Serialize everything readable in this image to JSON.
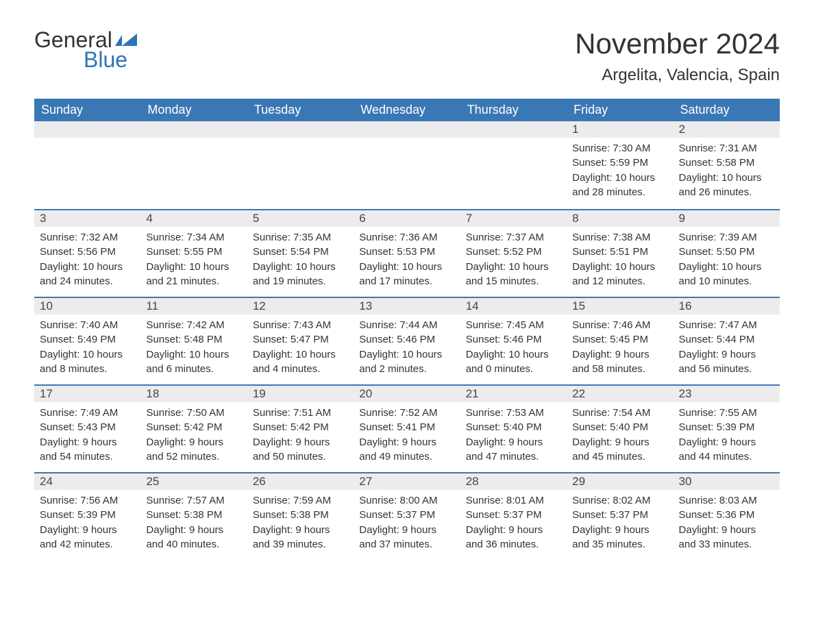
{
  "brand": {
    "text_general": "General",
    "text_blue": "Blue",
    "flag_color": "#2d74b8",
    "general_color": "#333333",
    "blue_color": "#2d74b8"
  },
  "header": {
    "month_title": "November 2024",
    "location": "Argelita, Valencia, Spain"
  },
  "colors": {
    "header_bg": "#3a78b5",
    "header_text": "#ffffff",
    "week_separator": "#3a78b5",
    "daynum_bg": "#ececec",
    "text": "#333333",
    "background": "#ffffff"
  },
  "typography": {
    "month_title_fontsize": 42,
    "location_fontsize": 24,
    "dayheader_fontsize": 18,
    "daynum_fontsize": 17,
    "body_fontsize": 15,
    "logo_fontsize": 32
  },
  "day_labels": [
    "Sunday",
    "Monday",
    "Tuesday",
    "Wednesday",
    "Thursday",
    "Friday",
    "Saturday"
  ],
  "weeks": [
    [
      {
        "n": "",
        "sunrise": "",
        "sunset": "",
        "day1": "",
        "day2": ""
      },
      {
        "n": "",
        "sunrise": "",
        "sunset": "",
        "day1": "",
        "day2": ""
      },
      {
        "n": "",
        "sunrise": "",
        "sunset": "",
        "day1": "",
        "day2": ""
      },
      {
        "n": "",
        "sunrise": "",
        "sunset": "",
        "day1": "",
        "day2": ""
      },
      {
        "n": "",
        "sunrise": "",
        "sunset": "",
        "day1": "",
        "day2": ""
      },
      {
        "n": "1",
        "sunrise": "Sunrise: 7:30 AM",
        "sunset": "Sunset: 5:59 PM",
        "day1": "Daylight: 10 hours",
        "day2": "and 28 minutes."
      },
      {
        "n": "2",
        "sunrise": "Sunrise: 7:31 AM",
        "sunset": "Sunset: 5:58 PM",
        "day1": "Daylight: 10 hours",
        "day2": "and 26 minutes."
      }
    ],
    [
      {
        "n": "3",
        "sunrise": "Sunrise: 7:32 AM",
        "sunset": "Sunset: 5:56 PM",
        "day1": "Daylight: 10 hours",
        "day2": "and 24 minutes."
      },
      {
        "n": "4",
        "sunrise": "Sunrise: 7:34 AM",
        "sunset": "Sunset: 5:55 PM",
        "day1": "Daylight: 10 hours",
        "day2": "and 21 minutes."
      },
      {
        "n": "5",
        "sunrise": "Sunrise: 7:35 AM",
        "sunset": "Sunset: 5:54 PM",
        "day1": "Daylight: 10 hours",
        "day2": "and 19 minutes."
      },
      {
        "n": "6",
        "sunrise": "Sunrise: 7:36 AM",
        "sunset": "Sunset: 5:53 PM",
        "day1": "Daylight: 10 hours",
        "day2": "and 17 minutes."
      },
      {
        "n": "7",
        "sunrise": "Sunrise: 7:37 AM",
        "sunset": "Sunset: 5:52 PM",
        "day1": "Daylight: 10 hours",
        "day2": "and 15 minutes."
      },
      {
        "n": "8",
        "sunrise": "Sunrise: 7:38 AM",
        "sunset": "Sunset: 5:51 PM",
        "day1": "Daylight: 10 hours",
        "day2": "and 12 minutes."
      },
      {
        "n": "9",
        "sunrise": "Sunrise: 7:39 AM",
        "sunset": "Sunset: 5:50 PM",
        "day1": "Daylight: 10 hours",
        "day2": "and 10 minutes."
      }
    ],
    [
      {
        "n": "10",
        "sunrise": "Sunrise: 7:40 AM",
        "sunset": "Sunset: 5:49 PM",
        "day1": "Daylight: 10 hours",
        "day2": "and 8 minutes."
      },
      {
        "n": "11",
        "sunrise": "Sunrise: 7:42 AM",
        "sunset": "Sunset: 5:48 PM",
        "day1": "Daylight: 10 hours",
        "day2": "and 6 minutes."
      },
      {
        "n": "12",
        "sunrise": "Sunrise: 7:43 AM",
        "sunset": "Sunset: 5:47 PM",
        "day1": "Daylight: 10 hours",
        "day2": "and 4 minutes."
      },
      {
        "n": "13",
        "sunrise": "Sunrise: 7:44 AM",
        "sunset": "Sunset: 5:46 PM",
        "day1": "Daylight: 10 hours",
        "day2": "and 2 minutes."
      },
      {
        "n": "14",
        "sunrise": "Sunrise: 7:45 AM",
        "sunset": "Sunset: 5:46 PM",
        "day1": "Daylight: 10 hours",
        "day2": "and 0 minutes."
      },
      {
        "n": "15",
        "sunrise": "Sunrise: 7:46 AM",
        "sunset": "Sunset: 5:45 PM",
        "day1": "Daylight: 9 hours",
        "day2": "and 58 minutes."
      },
      {
        "n": "16",
        "sunrise": "Sunrise: 7:47 AM",
        "sunset": "Sunset: 5:44 PM",
        "day1": "Daylight: 9 hours",
        "day2": "and 56 minutes."
      }
    ],
    [
      {
        "n": "17",
        "sunrise": "Sunrise: 7:49 AM",
        "sunset": "Sunset: 5:43 PM",
        "day1": "Daylight: 9 hours",
        "day2": "and 54 minutes."
      },
      {
        "n": "18",
        "sunrise": "Sunrise: 7:50 AM",
        "sunset": "Sunset: 5:42 PM",
        "day1": "Daylight: 9 hours",
        "day2": "and 52 minutes."
      },
      {
        "n": "19",
        "sunrise": "Sunrise: 7:51 AM",
        "sunset": "Sunset: 5:42 PM",
        "day1": "Daylight: 9 hours",
        "day2": "and 50 minutes."
      },
      {
        "n": "20",
        "sunrise": "Sunrise: 7:52 AM",
        "sunset": "Sunset: 5:41 PM",
        "day1": "Daylight: 9 hours",
        "day2": "and 49 minutes."
      },
      {
        "n": "21",
        "sunrise": "Sunrise: 7:53 AM",
        "sunset": "Sunset: 5:40 PM",
        "day1": "Daylight: 9 hours",
        "day2": "and 47 minutes."
      },
      {
        "n": "22",
        "sunrise": "Sunrise: 7:54 AM",
        "sunset": "Sunset: 5:40 PM",
        "day1": "Daylight: 9 hours",
        "day2": "and 45 minutes."
      },
      {
        "n": "23",
        "sunrise": "Sunrise: 7:55 AM",
        "sunset": "Sunset: 5:39 PM",
        "day1": "Daylight: 9 hours",
        "day2": "and 44 minutes."
      }
    ],
    [
      {
        "n": "24",
        "sunrise": "Sunrise: 7:56 AM",
        "sunset": "Sunset: 5:39 PM",
        "day1": "Daylight: 9 hours",
        "day2": "and 42 minutes."
      },
      {
        "n": "25",
        "sunrise": "Sunrise: 7:57 AM",
        "sunset": "Sunset: 5:38 PM",
        "day1": "Daylight: 9 hours",
        "day2": "and 40 minutes."
      },
      {
        "n": "26",
        "sunrise": "Sunrise: 7:59 AM",
        "sunset": "Sunset: 5:38 PM",
        "day1": "Daylight: 9 hours",
        "day2": "and 39 minutes."
      },
      {
        "n": "27",
        "sunrise": "Sunrise: 8:00 AM",
        "sunset": "Sunset: 5:37 PM",
        "day1": "Daylight: 9 hours",
        "day2": "and 37 minutes."
      },
      {
        "n": "28",
        "sunrise": "Sunrise: 8:01 AM",
        "sunset": "Sunset: 5:37 PM",
        "day1": "Daylight: 9 hours",
        "day2": "and 36 minutes."
      },
      {
        "n": "29",
        "sunrise": "Sunrise: 8:02 AM",
        "sunset": "Sunset: 5:37 PM",
        "day1": "Daylight: 9 hours",
        "day2": "and 35 minutes."
      },
      {
        "n": "30",
        "sunrise": "Sunrise: 8:03 AM",
        "sunset": "Sunset: 5:36 PM",
        "day1": "Daylight: 9 hours",
        "day2": "and 33 minutes."
      }
    ]
  ]
}
